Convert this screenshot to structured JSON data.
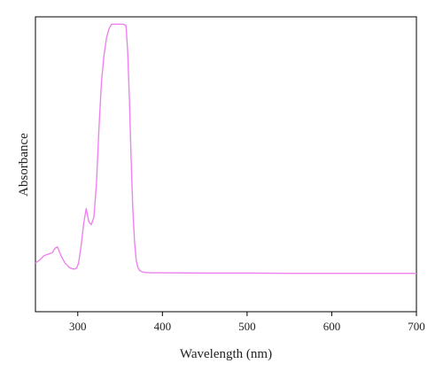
{
  "chart_data": {
    "type": "line",
    "title": "",
    "xlabel": "Wavelength (nm)",
    "ylabel": "Absorbance",
    "xlim": [
      250,
      700
    ],
    "ylim": [
      0,
      1
    ],
    "x_ticks": [
      300,
      400,
      500,
      600,
      700
    ],
    "y_ticks": [],
    "grid": false,
    "legend": "none",
    "series": [
      {
        "color": "#ee82ee",
        "x": [
          250,
          255,
          260,
          265,
          270,
          273,
          276,
          278,
          281,
          285,
          290,
          294,
          297,
          299,
          301,
          304,
          307,
          310,
          313,
          316,
          319,
          322,
          325,
          328,
          331,
          334,
          337,
          340,
          343,
          346,
          350,
          354,
          357,
          359,
          361,
          363,
          365,
          367,
          369,
          371,
          373,
          376,
          380,
          385,
          390,
          400,
          450,
          500,
          550,
          600,
          650,
          700
        ],
        "y": [
          0.165,
          0.175,
          0.19,
          0.195,
          0.2,
          0.215,
          0.22,
          0.205,
          0.185,
          0.165,
          0.15,
          0.145,
          0.145,
          0.15,
          0.165,
          0.225,
          0.3,
          0.35,
          0.305,
          0.295,
          0.32,
          0.43,
          0.62,
          0.78,
          0.87,
          0.93,
          0.96,
          0.975,
          0.975,
          0.975,
          0.975,
          0.975,
          0.97,
          0.88,
          0.72,
          0.52,
          0.35,
          0.24,
          0.175,
          0.15,
          0.14,
          0.135,
          0.133,
          0.132,
          0.132,
          0.132,
          0.131,
          0.131,
          0.13,
          0.13,
          0.13,
          0.13
        ]
      }
    ]
  }
}
